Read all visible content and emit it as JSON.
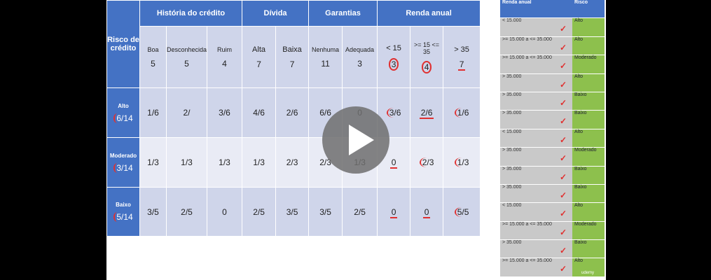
{
  "table": {
    "corner": "Risco de crédito",
    "groups": [
      "História do crédito",
      "Dívida",
      "Garantias",
      "Renda anual"
    ],
    "subcols": [
      {
        "label": "Boa",
        "count": "5"
      },
      {
        "label": "Desconhecida",
        "count": "5"
      },
      {
        "label": "Ruim",
        "count": "4"
      },
      {
        "label": "Alta",
        "count": "7"
      },
      {
        "label": "Baixa",
        "count": "7"
      },
      {
        "label": "Nenhuma",
        "count": "11"
      },
      {
        "label": "Adequada",
        "count": "3"
      },
      {
        "label": "< 15",
        "count": "3"
      },
      {
        "label": ">= 15 <= 35",
        "count": "4"
      },
      {
        "label": "> 35",
        "count": "7"
      }
    ],
    "rows": [
      {
        "label": "Alto",
        "frac_num": "6",
        "frac_den": "/14",
        "cells": [
          "1/6",
          "2/",
          "3/6",
          "4/6",
          "2/6",
          "6/6",
          "0",
          "3/6",
          "2/6",
          "1/6"
        ]
      },
      {
        "label": "Moderado",
        "frac_num": "3",
        "frac_den": "/14",
        "cells": [
          "1/3",
          "1/3",
          "1/3",
          "1/3",
          "2/3",
          "2/3",
          "1/3",
          "0",
          "2/3",
          "1/3"
        ]
      },
      {
        "label": "Baixo",
        "frac_num": "5",
        "frac_den": "/14",
        "cells": [
          "3/5",
          "2/5",
          "0",
          "2/5",
          "3/5",
          "3/5",
          "2/5",
          "0",
          "0",
          "5/5"
        ]
      }
    ]
  },
  "side": {
    "headers": [
      "Renda anual",
      "Risco"
    ],
    "rows": [
      [
        "< 15.000",
        "Alto"
      ],
      [
        ">= 15.000 a <= 35.000",
        "Alto"
      ],
      [
        ">= 15.000 a <= 35.000",
        "Moderado"
      ],
      [
        "> 35.000",
        "Alto"
      ],
      [
        "> 35.000",
        "Baixo"
      ],
      [
        "> 35.000",
        "Baixo"
      ],
      [
        "< 15.000",
        "Alto"
      ],
      [
        "> 35.000",
        "Moderado"
      ],
      [
        "> 35.000",
        "Baixo"
      ],
      [
        "> 35.000",
        "Baixo"
      ],
      [
        "< 15.000",
        "Alto"
      ],
      [
        ">= 15.000 a <= 35.000",
        "Moderado"
      ],
      [
        "> 35.000",
        "Baixo"
      ],
      [
        ">= 15.000 a <= 35.000",
        "Alto"
      ]
    ]
  },
  "icons": {
    "play": "play-icon",
    "check": "check-mark-icon",
    "logo": "udemy-logo"
  },
  "logo_text": "udemy",
  "colors": {
    "header": "#4472c4",
    "band_dark": "#cfd5ea",
    "band_light": "#e9ebf5",
    "side_gray": "#c9c9c9",
    "side_green": "#8dc04d",
    "annotation": "#e03030"
  }
}
